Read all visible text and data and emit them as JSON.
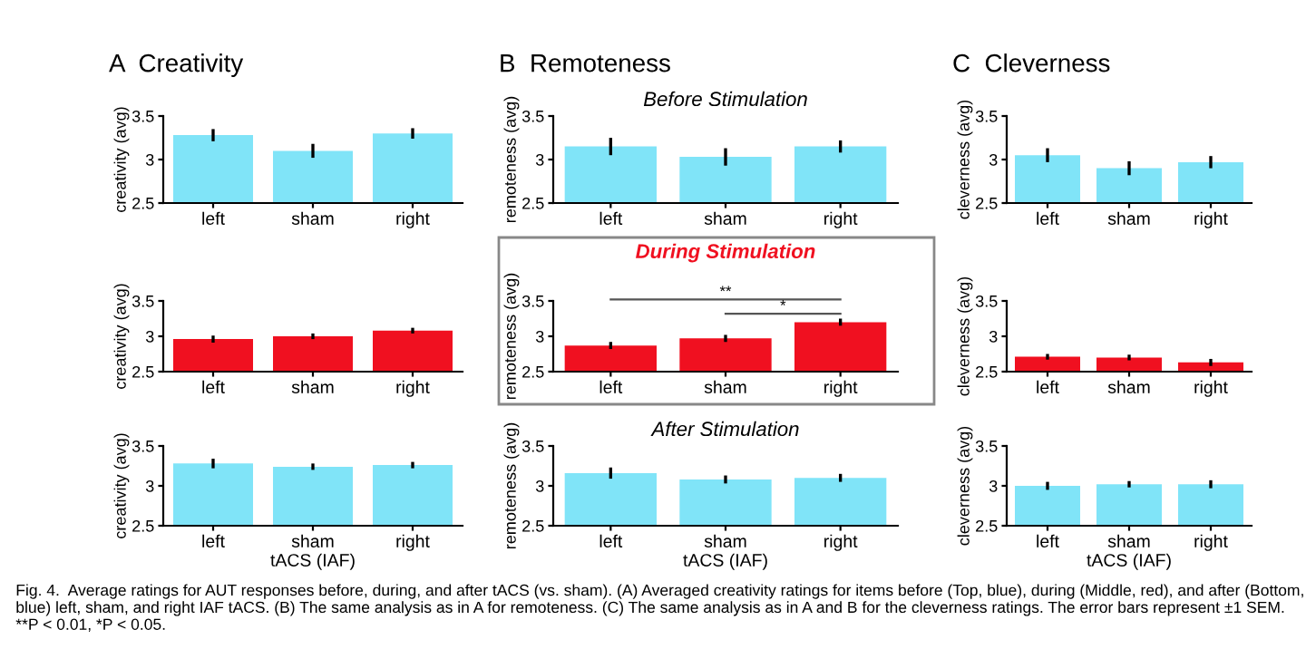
{
  "chart_data": [
    {
      "type": "bar",
      "title": "A  Creativity",
      "ylabel": "creativity (avg)",
      "categories": [
        "left",
        "sham",
        "right"
      ],
      "values": [
        3.28,
        3.1,
        3.3
      ],
      "errors": [
        0.07,
        0.08,
        0.06
      ],
      "color": "#80e4f8",
      "ylim": [
        2.5,
        3.5
      ],
      "yticks": [
        2.5,
        3,
        3.5
      ]
    },
    {
      "type": "bar",
      "title": "B  Remoteness",
      "subtitle": "Before Stimulation",
      "ylabel": "remoteness (avg)",
      "categories": [
        "left",
        "sham",
        "right"
      ],
      "values": [
        3.15,
        3.03,
        3.15
      ],
      "errors": [
        0.1,
        0.1,
        0.07
      ],
      "color": "#80e4f8",
      "ylim": [
        2.5,
        3.5
      ],
      "yticks": [
        2.5,
        3,
        3.5
      ]
    },
    {
      "type": "bar",
      "title": "C  Cleverness",
      "ylabel": "cleverness (avg)",
      "categories": [
        "left",
        "sham",
        "right"
      ],
      "values": [
        3.05,
        2.9,
        2.97
      ],
      "errors": [
        0.08,
        0.08,
        0.07
      ],
      "color": "#80e4f8",
      "ylim": [
        2.5,
        3.5
      ],
      "yticks": [
        2.5,
        3,
        3.5
      ]
    },
    {
      "type": "bar",
      "ylabel": "creativity (avg)",
      "categories": [
        "left",
        "sham",
        "right"
      ],
      "values": [
        2.96,
        3.0,
        3.08
      ],
      "errors": [
        0.05,
        0.04,
        0.04
      ],
      "color": "#f01020",
      "ylim": [
        2.5,
        3.5
      ],
      "yticks": [
        2.5,
        3,
        3.5
      ]
    },
    {
      "type": "bar",
      "title": "During Stimulation",
      "ylabel": "remoteness (avg)",
      "categories": [
        "left",
        "sham",
        "right"
      ],
      "values": [
        2.87,
        2.97,
        3.2
      ],
      "errors": [
        0.05,
        0.05,
        0.05
      ],
      "color": "#f01020",
      "ylim": [
        2.5,
        3.5
      ],
      "yticks": [
        2.5,
        3,
        3.5
      ],
      "annotations": [
        "**",
        "*"
      ]
    },
    {
      "type": "bar",
      "ylabel": "cleverness (avg)",
      "categories": [
        "left",
        "sham",
        "right"
      ],
      "values": [
        2.71,
        2.7,
        2.63
      ],
      "errors": [
        0.04,
        0.04,
        0.05
      ],
      "color": "#f01020",
      "ylim": [
        2.5,
        3.5
      ],
      "yticks": [
        2.5,
        3,
        3.5
      ]
    },
    {
      "type": "bar",
      "ylabel": "creativity (avg)",
      "xlabel": "tACS (IAF)",
      "categories": [
        "left",
        "sham",
        "right"
      ],
      "values": [
        3.28,
        3.24,
        3.26
      ],
      "errors": [
        0.06,
        0.04,
        0.04
      ],
      "color": "#80e4f8",
      "ylim": [
        2.5,
        3.5
      ],
      "yticks": [
        2.5,
        3,
        3.5
      ]
    },
    {
      "type": "bar",
      "title": "After Stimulation",
      "ylabel": "remoteness (avg)",
      "xlabel": "tACS (IAF)",
      "categories": [
        "left",
        "sham",
        "right"
      ],
      "values": [
        3.16,
        3.08,
        3.1
      ],
      "errors": [
        0.07,
        0.05,
        0.05
      ],
      "color": "#80e4f8",
      "ylim": [
        2.5,
        3.5
      ],
      "yticks": [
        2.5,
        3,
        3.5
      ]
    },
    {
      "type": "bar",
      "ylabel": "cleverness (avg)",
      "xlabel": "tACS (IAF)",
      "categories": [
        "left",
        "sham",
        "right"
      ],
      "values": [
        3.0,
        3.02,
        3.02
      ],
      "errors": [
        0.05,
        0.04,
        0.05
      ],
      "color": "#80e4f8",
      "ylim": [
        2.5,
        3.5
      ],
      "yticks": [
        2.5,
        3,
        3.5
      ],
      "annotations": [
        "Fig. 4.  Average ratings for AUT responses before, during, and after tACS (vs. sham). (A) Averaged creativity ratings for items before (Top, blue), during (Middle, red), and after (Bottom, blue) left, sham, and right IAF tACS. (B) The same analysis as in A for remoteness. (C) The same analysis as in A and B for the cleverness ratings. The error bars represent ±1 SEM. **P < 0.01, *P < 0.05."
      ]
    }
  ]
}
